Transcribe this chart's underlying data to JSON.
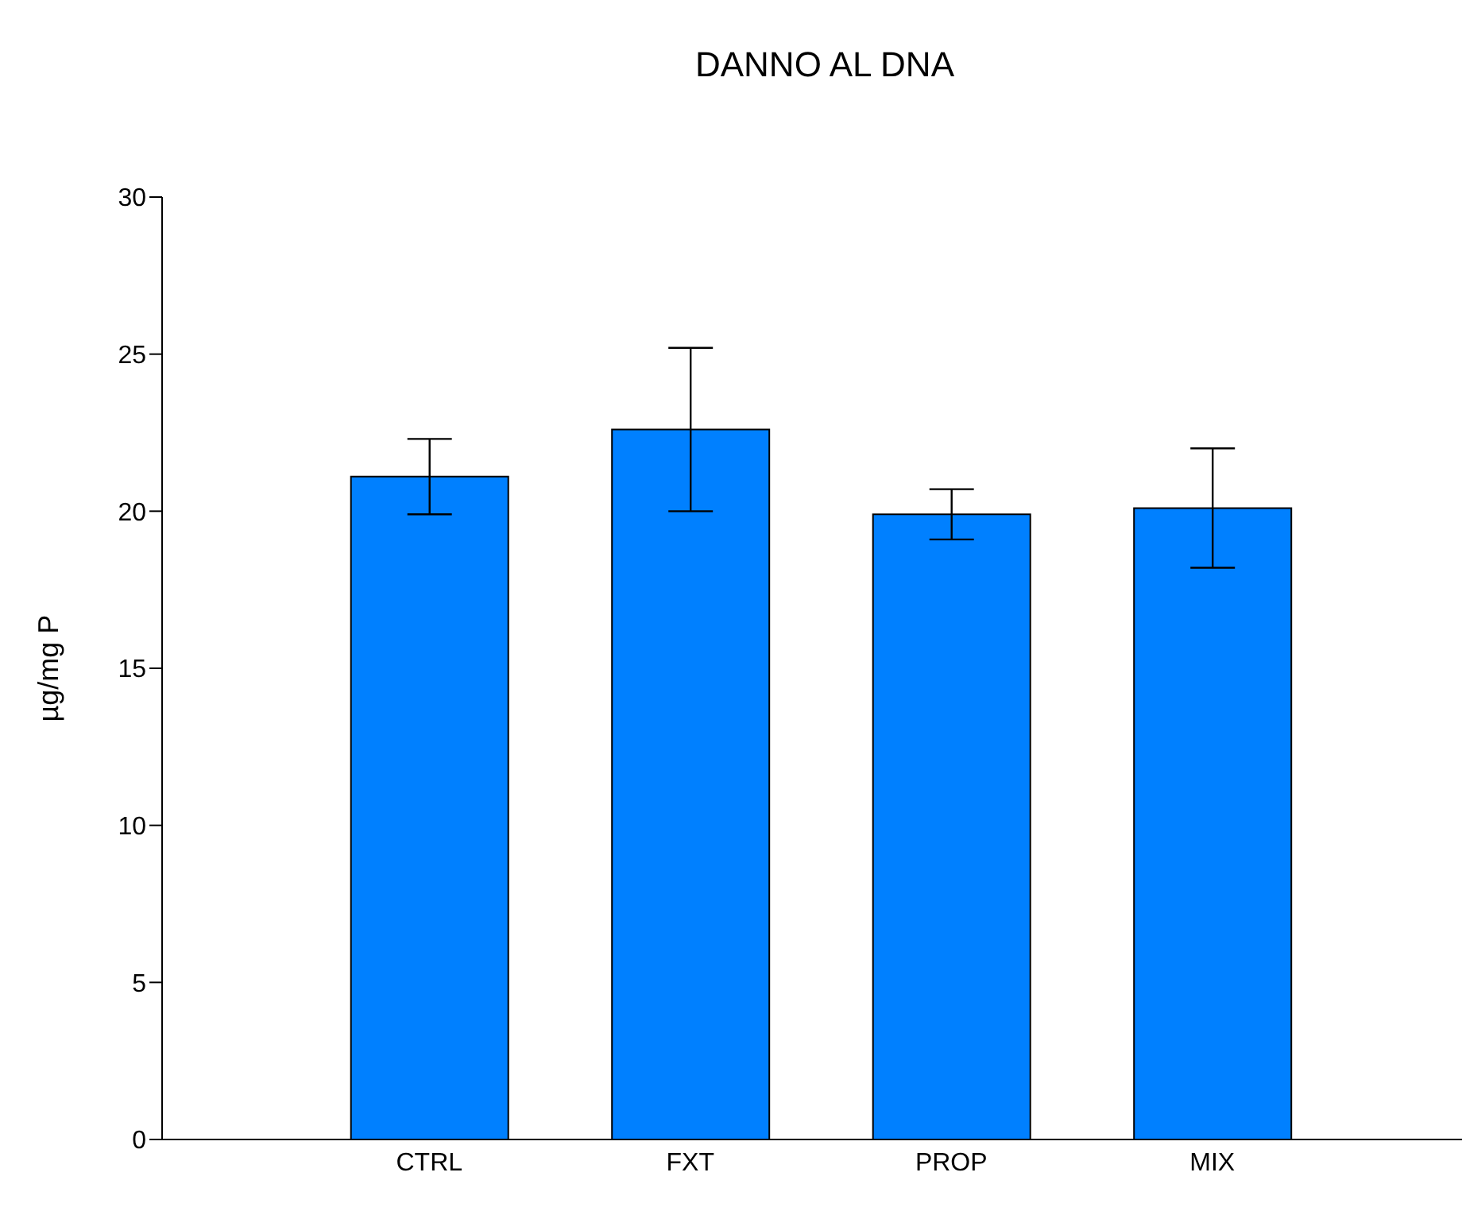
{
  "chart_data": {
    "type": "bar",
    "title": "DANNO AL DNA",
    "ylabel": "µg/mg P",
    "categories": [
      "CTRL",
      "FXT",
      "PROP",
      "MIX"
    ],
    "values": [
      21.1,
      22.6,
      19.9,
      20.1
    ],
    "errors": [
      1.2,
      2.6,
      0.8,
      1.9
    ],
    "color": "#0080ff",
    "ylim": [
      0,
      30
    ],
    "yticks": [
      0,
      5,
      10,
      15,
      20,
      25,
      30
    ],
    "grid": false,
    "legend": false
  }
}
